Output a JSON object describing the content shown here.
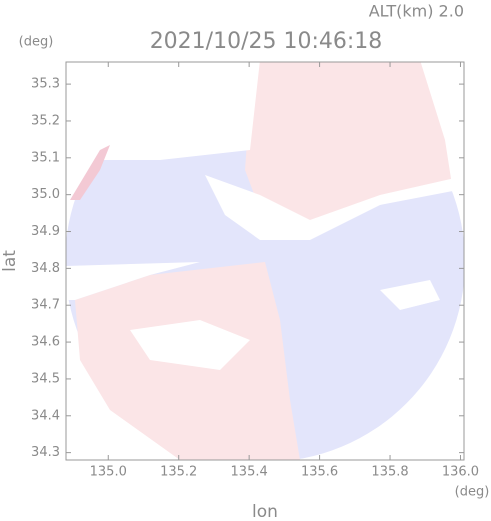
{
  "chart_data": {
    "type": "radar",
    "title": "2021/10/25 10:46:18",
    "subtitle": "ALT(km)  2.0",
    "x_label": "lon",
    "y_label": "lat",
    "x_unit": "(deg)",
    "y_unit": "(deg)",
    "xlim": [
      134.88,
      136.01
    ],
    "ylim": [
      34.28,
      35.36
    ],
    "xticks": [
      {
        "value": 135.0,
        "label": "135.0"
      },
      135.2,
      135.4,
      135.6,
      135.8,
      {
        "value": 136.0,
        "label": "136.0"
      }
    ],
    "yticks": [
      34.3,
      34.4,
      34.5,
      34.6,
      34.7,
      34.8,
      34.9,
      {
        "value": 35.0,
        "label": "35.0"
      },
      35.1,
      35.2,
      35.3
    ]
  }
}
